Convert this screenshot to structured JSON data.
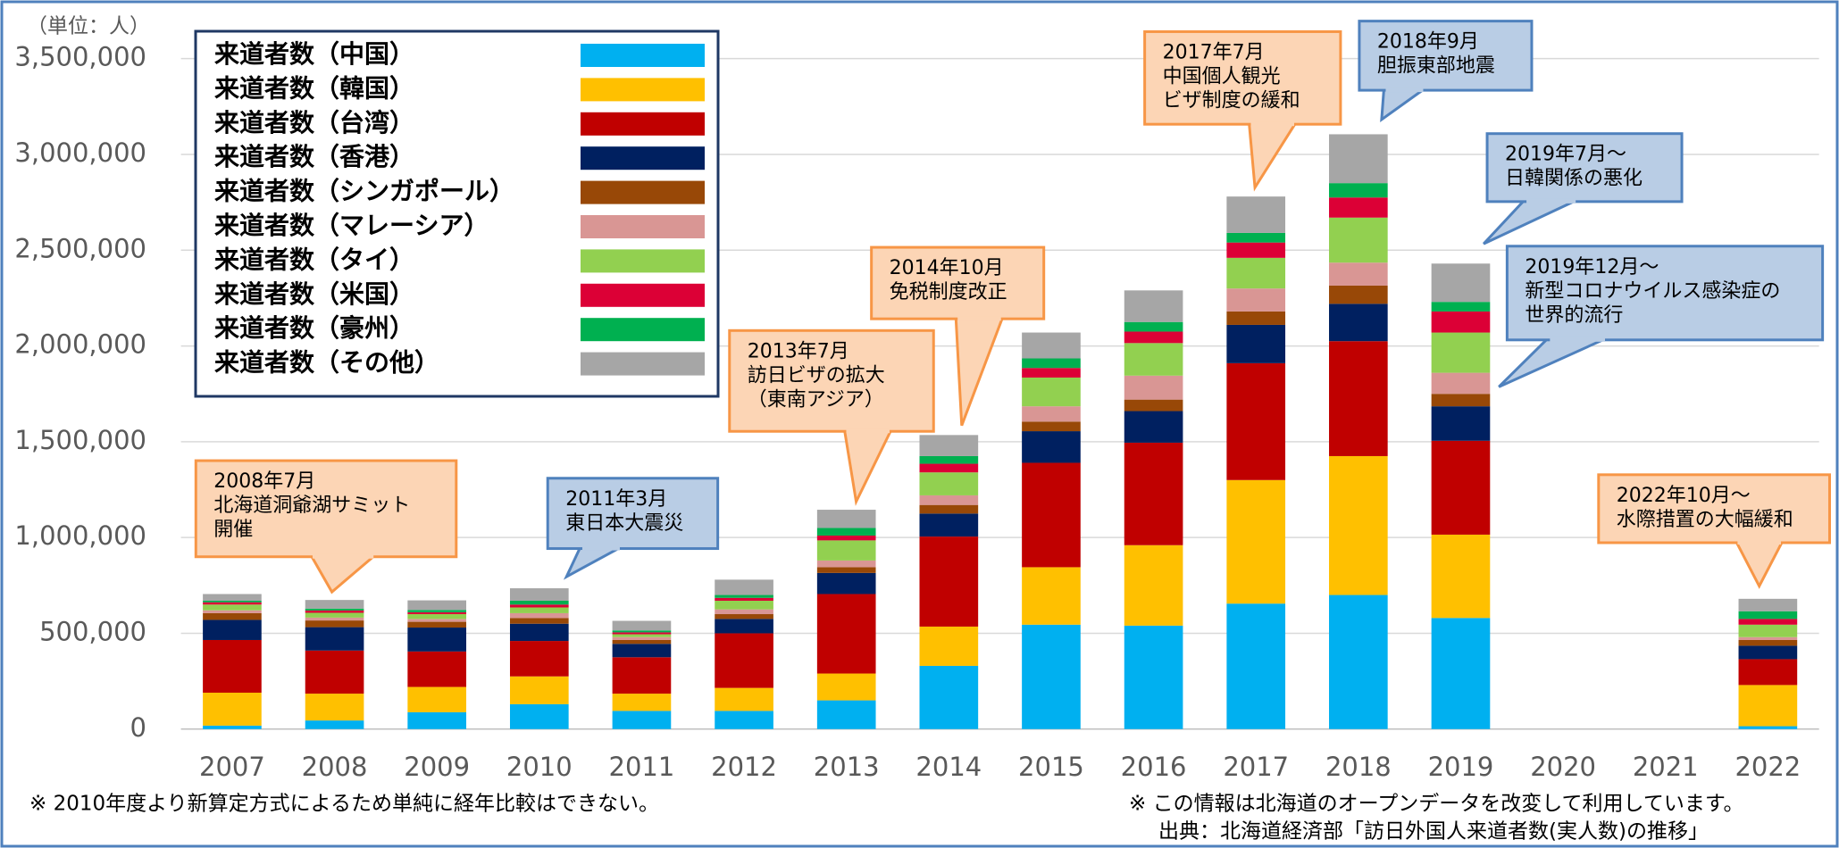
{
  "chart_data": {
    "type": "stacked-bar",
    "unit_label": "（単位：人）",
    "categories": [
      "2007",
      "2008",
      "2009",
      "2010",
      "2011",
      "2012",
      "2013",
      "2014",
      "2015",
      "2016",
      "2017",
      "2018",
      "2019",
      "2020",
      "2021",
      "2022"
    ],
    "series": [
      {
        "name": "来道者数（中国）",
        "color": "#00b0f0",
        "values": [
          18000,
          45000,
          88000,
          130000,
          95000,
          95000,
          150000,
          330000,
          545000,
          540000,
          655000,
          700000,
          580000,
          null,
          null,
          15000
        ]
      },
      {
        "name": "来道者数（韓国）",
        "color": "#ffc000",
        "values": [
          172000,
          140000,
          132000,
          145000,
          90000,
          120000,
          140000,
          205000,
          300000,
          420000,
          645000,
          725000,
          435000,
          null,
          null,
          215000
        ]
      },
      {
        "name": "来道者数（台湾）",
        "color": "#c00000",
        "values": [
          275000,
          225000,
          185000,
          185000,
          190000,
          285000,
          415000,
          470000,
          545000,
          535000,
          610000,
          600000,
          490000,
          null,
          null,
          135000
        ]
      },
      {
        "name": "来道者数（香港）",
        "color": "#002060",
        "values": [
          105000,
          122000,
          125000,
          90000,
          70000,
          75000,
          110000,
          120000,
          165000,
          165000,
          200000,
          195000,
          180000,
          null,
          null,
          70000
        ]
      },
      {
        "name": "来道者数（シンガポール）",
        "color": "#984807",
        "values": [
          35000,
          35000,
          30000,
          30000,
          20000,
          25000,
          30000,
          45000,
          50000,
          60000,
          70000,
          95000,
          65000,
          null,
          null,
          30000
        ]
      },
      {
        "name": "来道者数（マレーシア）",
        "color": "#d99694",
        "values": [
          15000,
          15000,
          15000,
          25000,
          15000,
          25000,
          35000,
          50000,
          80000,
          125000,
          120000,
          120000,
          110000,
          null,
          null,
          15000
        ]
      },
      {
        "name": "来道者数（タイ）",
        "color": "#92d050",
        "values": [
          30000,
          25000,
          25000,
          30000,
          15000,
          45000,
          105000,
          120000,
          150000,
          170000,
          160000,
          235000,
          210000,
          null,
          null,
          65000
        ]
      },
      {
        "name": "来道者数（米国）",
        "color": "#dc0036",
        "values": [
          12000,
          12000,
          10000,
          15000,
          10000,
          15000,
          25000,
          45000,
          50000,
          60000,
          80000,
          105000,
          110000,
          null,
          null,
          30000
        ]
      },
      {
        "name": "来道者数（豪州）",
        "color": "#00b050",
        "values": [
          8000,
          10000,
          12000,
          20000,
          10000,
          15000,
          40000,
          40000,
          50000,
          50000,
          50000,
          75000,
          50000,
          null,
          null,
          40000
        ]
      },
      {
        "name": "来道者数（その他）",
        "color": "#a6a6a6",
        "values": [
          35000,
          45000,
          50000,
          65000,
          50000,
          80000,
          95000,
          110000,
          135000,
          165000,
          190000,
          255000,
          200000,
          null,
          null,
          65000
        ]
      }
    ],
    "ylim": [
      0,
      3500000
    ],
    "yticks": [
      0,
      {
        "value": 500000,
        "label": "500,000"
      },
      {
        "value": 1000000,
        "label": "1,000,000"
      },
      {
        "value": 1500000,
        "label": "1,500,000"
      },
      {
        "value": 2000000,
        "label": "2,000,000"
      },
      {
        "value": 2500000,
        "label": "2,500,000"
      },
      {
        "value": 3000000,
        "label": "3,000,000"
      },
      {
        "value": 3500000,
        "label": "3,500,000"
      }
    ],
    "grid": true,
    "legend": "top-left",
    "annotations": [
      {
        "lines": [
          "2008年7月",
          "北海道洞爺湖サミット",
          "開催"
        ]
      },
      {
        "lines": [
          "2011年3月",
          "東日本大震災"
        ]
      },
      {
        "lines": [
          "2013年7月",
          "訪日ビザの拡大",
          "（東南アジア）"
        ]
      },
      {
        "lines": [
          "2014年10月",
          "免税制度改正"
        ]
      },
      {
        "lines": [
          "2017年7月",
          "中国個人観光",
          "ビザ制度の緩和"
        ]
      },
      {
        "lines": [
          "2018年9月",
          "胆振東部地震"
        ]
      },
      {
        "lines": [
          "2019年7月～",
          "日韓関係の悪化"
        ]
      },
      {
        "lines": [
          "2019年12月～",
          "新型コロナウイルス感染症の",
          "世界的流行"
        ]
      },
      {
        "lines": [
          "2022年10月～",
          "水際措置の大幅緩和"
        ]
      }
    ],
    "notes": [
      "※ 2010年度より新算定方式によるため単純に経年比較はできない。",
      "※ この情報は北海道のオープンデータを改変して利用しています。",
      "出典：北海道経済部「訪日外国人来道者数(実人数)の推移」"
    ]
  }
}
